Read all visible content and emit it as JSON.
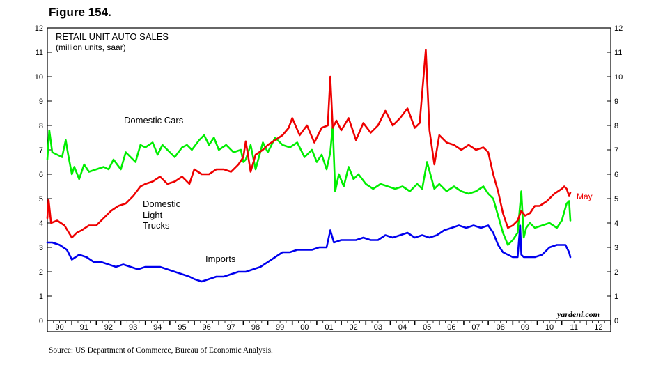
{
  "figure_label": "Figure 154.",
  "source": "Source: US Department of Commerce, Bureau of Economic Analysis.",
  "chart_data": {
    "type": "line",
    "title": "RETAIL UNIT AUTO SALES",
    "subtitle": "(million units, saar)",
    "watermark": "yardeni.com",
    "ylim": [
      0,
      12
    ],
    "yticks": [
      "0",
      "1",
      "2",
      "3",
      "4",
      "5",
      "6",
      "7",
      "8",
      "9",
      "10",
      "11",
      "12"
    ],
    "xlim": [
      1990,
      2013
    ],
    "xtick_labels": [
      "90",
      "91",
      "92",
      "93",
      "94",
      "95",
      "96",
      "97",
      "98",
      "99",
      "00",
      "01",
      "02",
      "03",
      "04",
      "05",
      "06",
      "07",
      "08",
      "09",
      "10",
      "11",
      "12"
    ],
    "grid": false,
    "series_labels": {
      "domestic_cars": "Domestic Cars",
      "light_trucks_1": "Domestic",
      "light_trucks_2": "Light",
      "light_trucks_3": "Trucks",
      "imports": "Imports",
      "latest": "May"
    },
    "series": [
      {
        "name": "Domestic Cars",
        "color": "#00ee00",
        "x": [
          1990.0,
          1990.08,
          1990.2,
          1990.4,
          1990.6,
          1990.75,
          1990.85,
          1991.0,
          1991.1,
          1991.3,
          1991.5,
          1991.7,
          1992.0,
          1992.3,
          1992.5,
          1992.7,
          1993.0,
          1993.2,
          1993.4,
          1993.6,
          1993.8,
          1994.0,
          1994.3,
          1994.5,
          1994.7,
          1994.9,
          1995.2,
          1995.5,
          1995.7,
          1995.9,
          1996.2,
          1996.4,
          1996.6,
          1996.8,
          1997.0,
          1997.3,
          1997.6,
          1997.9,
          1998.0,
          1998.1,
          1998.3,
          1998.5,
          1998.8,
          1999.0,
          1999.3,
          1999.6,
          1999.9,
          2000.2,
          2000.5,
          2000.8,
          2001.0,
          2001.2,
          2001.4,
          2001.55,
          2001.65,
          2001.75,
          2001.9,
          2002.1,
          2002.3,
          2002.5,
          2002.7,
          2003.0,
          2003.3,
          2003.6,
          2003.9,
          2004.2,
          2004.5,
          2004.8,
          2005.1,
          2005.3,
          2005.5,
          2005.8,
          2006.0,
          2006.3,
          2006.6,
          2006.9,
          2007.2,
          2007.5,
          2007.8,
          2008.0,
          2008.2,
          2008.4,
          2008.6,
          2008.8,
          2009.0,
          2009.2,
          2009.35,
          2009.45,
          2009.55,
          2009.7,
          2009.9,
          2010.2,
          2010.5,
          2010.8,
          2011.0,
          2011.2,
          2011.3,
          2011.35
        ],
        "y": [
          6.6,
          7.8,
          6.9,
          6.8,
          6.7,
          7.4,
          6.8,
          6.0,
          6.3,
          5.8,
          6.4,
          6.1,
          6.2,
          6.3,
          6.2,
          6.6,
          6.2,
          6.9,
          6.7,
          6.5,
          7.2,
          7.1,
          7.3,
          6.8,
          7.2,
          7.0,
          6.7,
          7.1,
          7.2,
          7.0,
          7.4,
          7.6,
          7.2,
          7.5,
          7.0,
          7.2,
          6.9,
          7.0,
          6.5,
          6.6,
          7.2,
          6.2,
          7.3,
          6.9,
          7.5,
          7.2,
          7.1,
          7.3,
          6.7,
          7.0,
          6.5,
          6.8,
          6.2,
          6.9,
          8.0,
          5.3,
          6.0,
          5.5,
          6.3,
          5.8,
          6.0,
          5.6,
          5.4,
          5.6,
          5.5,
          5.4,
          5.5,
          5.3,
          5.6,
          5.4,
          6.5,
          5.4,
          5.6,
          5.3,
          5.5,
          5.3,
          5.2,
          5.3,
          5.5,
          5.2,
          5.0,
          4.3,
          3.6,
          3.1,
          3.3,
          3.6,
          5.3,
          3.4,
          3.8,
          4.0,
          3.8,
          3.9,
          4.0,
          3.8,
          4.1,
          4.8,
          4.9,
          4.1
        ]
      },
      {
        "name": "Domestic Light Trucks",
        "color": "#ee0000",
        "x": [
          1990.0,
          1990.05,
          1990.15,
          1990.4,
          1990.7,
          1991.0,
          1991.2,
          1991.4,
          1991.7,
          1992.0,
          1992.3,
          1992.6,
          1992.9,
          1993.2,
          1993.5,
          1993.8,
          1994.0,
          1994.3,
          1994.6,
          1994.9,
          1995.2,
          1995.5,
          1995.8,
          1996.0,
          1996.3,
          1996.6,
          1996.9,
          1997.2,
          1997.5,
          1997.8,
          1998.0,
          1998.1,
          1998.3,
          1998.5,
          1998.8,
          1999.0,
          1999.3,
          1999.6,
          1999.85,
          2000.0,
          2000.3,
          2000.6,
          2000.9,
          2001.2,
          2001.45,
          2001.55,
          2001.65,
          2001.8,
          2002.0,
          2002.3,
          2002.6,
          2002.9,
          2003.2,
          2003.5,
          2003.8,
          2004.1,
          2004.4,
          2004.7,
          2005.0,
          2005.2,
          2005.45,
          2005.6,
          2005.8,
          2006.0,
          2006.3,
          2006.6,
          2006.9,
          2007.2,
          2007.5,
          2007.8,
          2008.0,
          2008.2,
          2008.4,
          2008.6,
          2008.8,
          2009.0,
          2009.2,
          2009.35,
          2009.5,
          2009.7,
          2009.9,
          2010.1,
          2010.4,
          2010.7,
          2011.0,
          2011.1,
          2011.2,
          2011.3,
          2011.35
        ],
        "y": [
          4.2,
          4.95,
          4.0,
          4.1,
          3.9,
          3.4,
          3.6,
          3.7,
          3.9,
          3.9,
          4.2,
          4.5,
          4.7,
          4.8,
          5.1,
          5.5,
          5.6,
          5.7,
          5.9,
          5.6,
          5.7,
          5.9,
          5.6,
          6.2,
          6.0,
          6.0,
          6.2,
          6.2,
          6.1,
          6.4,
          6.7,
          7.35,
          6.1,
          6.8,
          7.0,
          7.2,
          7.4,
          7.6,
          7.9,
          8.3,
          7.6,
          8.0,
          7.3,
          7.9,
          8.0,
          10.0,
          7.9,
          8.2,
          7.8,
          8.3,
          7.4,
          8.1,
          7.7,
          8.0,
          8.6,
          8.0,
          8.3,
          8.7,
          7.9,
          8.1,
          11.1,
          7.8,
          6.4,
          7.6,
          7.3,
          7.2,
          7.0,
          7.2,
          7.0,
          7.1,
          6.9,
          6.0,
          5.3,
          4.4,
          3.8,
          3.9,
          4.1,
          4.5,
          4.3,
          4.4,
          4.7,
          4.7,
          4.9,
          5.2,
          5.4,
          5.5,
          5.4,
          5.1,
          5.25
        ]
      },
      {
        "name": "Imports",
        "color": "#0000ee",
        "x": [
          1990.0,
          1990.2,
          1990.5,
          1990.8,
          1991.0,
          1991.3,
          1991.6,
          1991.9,
          1992.2,
          1992.5,
          1992.8,
          1993.1,
          1993.4,
          1993.7,
          1994.0,
          1994.3,
          1994.6,
          1994.9,
          1995.2,
          1995.5,
          1995.8,
          1996.0,
          1996.3,
          1996.6,
          1996.9,
          1997.2,
          1997.5,
          1997.8,
          1998.1,
          1998.4,
          1998.7,
          1999.0,
          1999.3,
          1999.6,
          1999.9,
          2000.2,
          2000.5,
          2000.8,
          2001.1,
          2001.4,
          2001.55,
          2001.7,
          2002.0,
          2002.3,
          2002.6,
          2002.9,
          2003.2,
          2003.5,
          2003.8,
          2004.1,
          2004.4,
          2004.7,
          2005.0,
          2005.3,
          2005.6,
          2005.9,
          2006.2,
          2006.5,
          2006.8,
          2007.1,
          2007.4,
          2007.7,
          2008.0,
          2008.2,
          2008.4,
          2008.6,
          2008.8,
          2009.0,
          2009.2,
          2009.3,
          2009.35,
          2009.45,
          2009.6,
          2009.9,
          2010.2,
          2010.5,
          2010.8,
          2011.0,
          2011.15,
          2011.3,
          2011.35
        ],
        "y": [
          3.2,
          3.2,
          3.1,
          2.9,
          2.5,
          2.7,
          2.6,
          2.4,
          2.4,
          2.3,
          2.2,
          2.3,
          2.2,
          2.1,
          2.2,
          2.2,
          2.2,
          2.1,
          2.0,
          1.9,
          1.8,
          1.7,
          1.6,
          1.7,
          1.8,
          1.8,
          1.9,
          2.0,
          2.0,
          2.1,
          2.2,
          2.4,
          2.6,
          2.8,
          2.8,
          2.9,
          2.9,
          2.9,
          3.0,
          3.0,
          3.7,
          3.2,
          3.3,
          3.3,
          3.3,
          3.4,
          3.3,
          3.3,
          3.5,
          3.4,
          3.5,
          3.6,
          3.4,
          3.5,
          3.4,
          3.5,
          3.7,
          3.8,
          3.9,
          3.8,
          3.9,
          3.8,
          3.9,
          3.6,
          3.1,
          2.8,
          2.7,
          2.6,
          2.6,
          3.9,
          2.7,
          2.6,
          2.6,
          2.6,
          2.7,
          3.0,
          3.1,
          3.1,
          3.1,
          2.8,
          2.6
        ]
      }
    ]
  }
}
